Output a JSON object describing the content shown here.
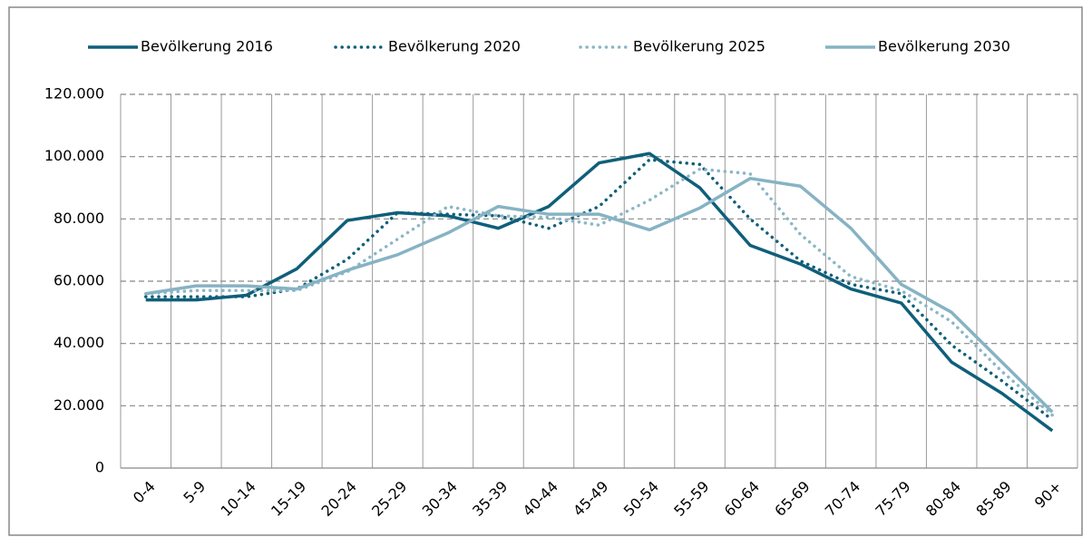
{
  "chart_data": {
    "type": "line",
    "categories": [
      "0-4",
      "5-9",
      "10-14",
      "15-19",
      "20-24",
      "25-29",
      "30-34",
      "35-39",
      "40-44",
      "45-49",
      "50-54",
      "55-59",
      "60-64",
      "65-69",
      "70-74",
      "75-79",
      "80-84",
      "85-89",
      "90+"
    ],
    "series": [
      {
        "name": "Bevölkerung 2016",
        "color": "#0f5f7a",
        "line_style": "solid",
        "values": [
          54000,
          54000,
          55500,
          64000,
          79500,
          82000,
          81000,
          77000,
          84000,
          98000,
          101000,
          90000,
          71500,
          65500,
          57500,
          53000,
          34000,
          24000,
          12000
        ]
      },
      {
        "name": "Bevölkerung 2020",
        "color": "#0f5f7a",
        "line_style": "dotted",
        "values": [
          55000,
          55000,
          55000,
          57500,
          67000,
          82000,
          81500,
          81000,
          77000,
          84000,
          99000,
          97500,
          80000,
          66500,
          59000,
          56000,
          39500,
          28000,
          15500
        ]
      },
      {
        "name": "Bevölkerung 2025",
        "color": "#8ab6c6",
        "line_style": "dotted",
        "values": [
          56000,
          57000,
          57000,
          57000,
          63000,
          73500,
          84000,
          81000,
          80500,
          78000,
          86000,
          96000,
          94500,
          75000,
          61500,
          57000,
          47000,
          31000,
          17000
        ]
      },
      {
        "name": "Bevölkerung 2030",
        "color": "#86b3c4",
        "line_style": "solid",
        "values": [
          56000,
          58500,
          58500,
          57500,
          63500,
          68500,
          75500,
          84000,
          81500,
          81500,
          76500,
          83500,
          93000,
          90500,
          77000,
          59000,
          50000,
          34000,
          18000
        ]
      }
    ],
    "ylim": [
      0,
      120000
    ],
    "yticks": [
      0,
      {
        "value": 20000,
        "label": "20.000"
      },
      {
        "value": 40000,
        "label": "40.000"
      },
      {
        "value": 60000,
        "label": "60.000"
      },
      {
        "value": 80000,
        "label": "80.000"
      },
      {
        "value": 100000,
        "label": "100.000"
      },
      {
        "value": 120000,
        "label": "120.000"
      }
    ],
    "grid": true,
    "legend": "top"
  }
}
